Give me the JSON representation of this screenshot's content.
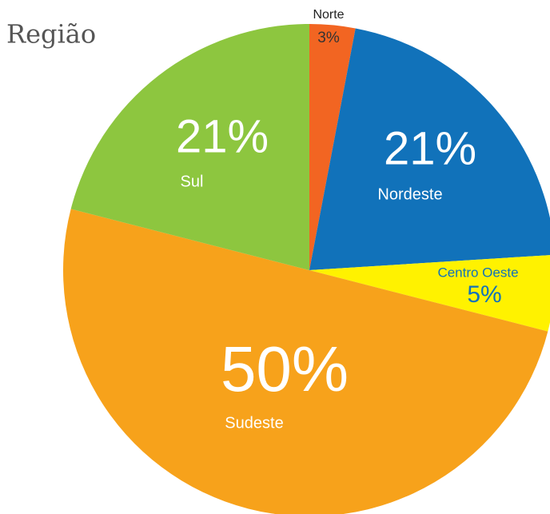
{
  "chart_data": {
    "type": "pie",
    "title": "Região",
    "categories": [
      "Norte",
      "Nordeste",
      "Centro Oeste",
      "Sudeste",
      "Sul"
    ],
    "values": [
      3,
      21,
      5,
      50,
      21
    ],
    "value_labels": [
      "3%",
      "21%",
      "5%",
      "50%",
      "21%"
    ],
    "colors": [
      "#f26522",
      "#1172ba",
      "#fff200",
      "#f7a21b",
      "#8dc63f"
    ]
  }
}
